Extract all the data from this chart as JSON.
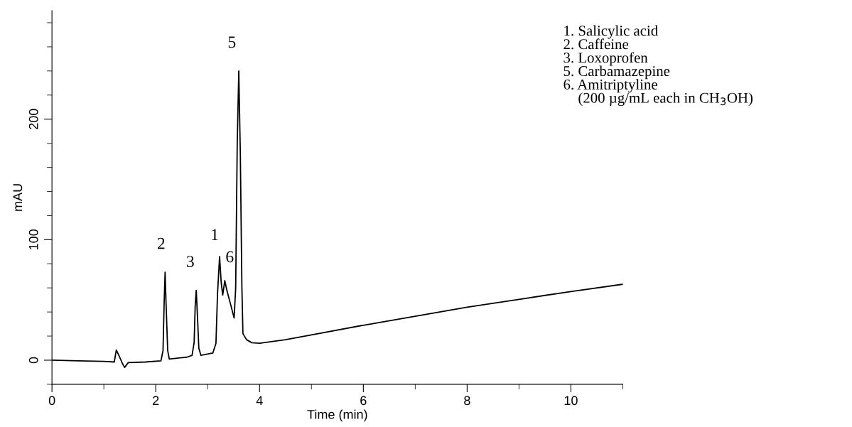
{
  "chart_data": {
    "type": "line",
    "xlabel": "Time (min)",
    "ylabel": "mAU",
    "xlim": [
      0,
      11
    ],
    "xticks": [
      0,
      2,
      4,
      6,
      8,
      10
    ],
    "ylim": [
      -20,
      290
    ],
    "yticks": [
      0,
      100,
      200
    ],
    "grid": false,
    "marker": "none",
    "line_style": "solid",
    "series": [
      {
        "color": "#000000",
        "x": [
          0,
          0.5,
          1.0,
          1.2,
          1.24,
          1.3,
          1.36,
          1.4,
          1.47,
          1.8,
          2.1,
          2.14,
          2.16,
          2.18,
          2.2,
          2.23,
          2.26,
          2.6,
          2.7,
          2.74,
          2.76,
          2.78,
          2.8,
          2.83,
          2.87,
          3.1,
          3.16,
          3.19,
          3.23,
          3.26,
          3.29,
          3.33,
          3.37,
          3.45,
          3.51,
          3.54,
          3.57,
          3.6,
          3.63,
          3.66,
          3.68,
          3.75,
          3.85,
          4.0,
          4.5,
          5,
          6,
          7,
          8,
          9,
          10,
          11
        ],
        "values": [
          0,
          -0.5,
          -1,
          -1.5,
          8.5,
          3,
          -3,
          -6,
          -2,
          -1.5,
          -0.5,
          8,
          45,
          73,
          45,
          8,
          1,
          2.5,
          4,
          15,
          45,
          58,
          40,
          10,
          4,
          6,
          14,
          55,
          86,
          65,
          54,
          66,
          58,
          45,
          35,
          60,
          180,
          240,
          170,
          60,
          22,
          17,
          14.5,
          14,
          17,
          21,
          29,
          36.5,
          44,
          50.5,
          57,
          63
        ]
      }
    ],
    "annotations": [
      {
        "text": "2",
        "x": 2.18,
        "y": 73
      },
      {
        "text": "3",
        "x": 2.78,
        "y": 58
      },
      {
        "text": "1",
        "x": 3.23,
        "y": 86
      },
      {
        "text": "6",
        "x": 3.33,
        "y": 66
      },
      {
        "text": "5",
        "x": 3.6,
        "y": 240
      },
      "1. Salicylic acid",
      "2. Caffeine",
      "3. Loxoprofen",
      "5. Carbamazepine",
      "6. Amitriptyline",
      "    (200 µg/mL each in CH$_{3}$OH)"
    ]
  }
}
